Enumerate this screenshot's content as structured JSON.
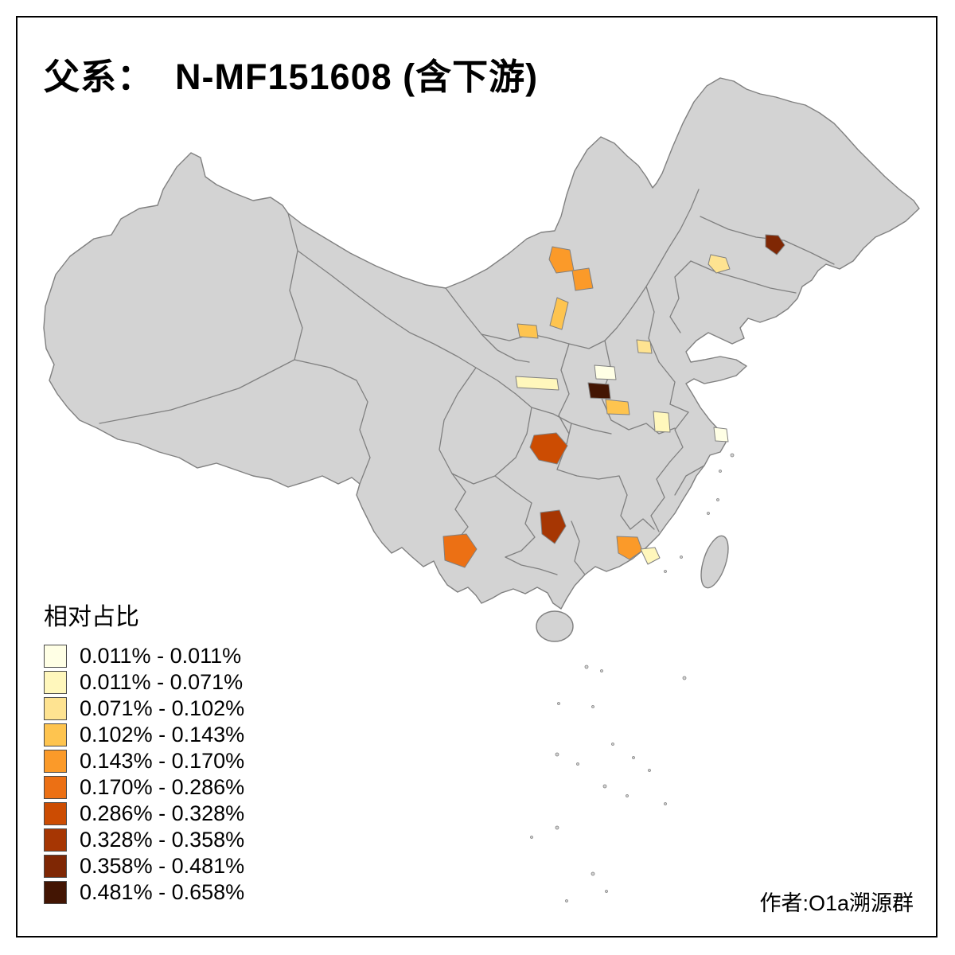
{
  "title": "父系：  N-MF151608 (含下游)",
  "legend": {
    "title": "相对占比",
    "entries": [
      {
        "label": "0.011% - 0.011%",
        "color": "#FFFFE5"
      },
      {
        "label": "0.011% - 0.071%",
        "color": "#FFF7BC"
      },
      {
        "label": "0.071% - 0.102%",
        "color": "#FEE391"
      },
      {
        "label": "0.102% - 0.143%",
        "color": "#FEC44F"
      },
      {
        "label": "0.143% - 0.170%",
        "color": "#FB9A29"
      },
      {
        "label": "0.170% - 0.286%",
        "color": "#EC7014"
      },
      {
        "label": "0.286% - 0.328%",
        "color": "#CC4C02"
      },
      {
        "label": "0.328% - 0.358%",
        "color": "#A63603"
      },
      {
        "label": "0.358% - 0.481%",
        "color": "#7F2704"
      },
      {
        "label": "0.481% - 0.658%",
        "color": "#431503"
      }
    ]
  },
  "credit": "作者:O1a溯源群",
  "map": {
    "base_fill": "#d3d3d3",
    "border_color": "#808080",
    "highlighted_regions": [
      {
        "id": "region-1",
        "bucket": 8
      },
      {
        "id": "region-2",
        "bucket": 2
      },
      {
        "id": "region-3",
        "bucket": 4
      },
      {
        "id": "region-4",
        "bucket": 4
      },
      {
        "id": "region-5",
        "bucket": 3
      },
      {
        "id": "region-6",
        "bucket": 3
      },
      {
        "id": "region-7",
        "bucket": 2
      },
      {
        "id": "region-8",
        "bucket": 1
      },
      {
        "id": "region-9",
        "bucket": 0
      },
      {
        "id": "region-10",
        "bucket": 9
      },
      {
        "id": "region-11",
        "bucket": 3
      },
      {
        "id": "region-12",
        "bucket": 1
      },
      {
        "id": "region-13",
        "bucket": 0
      },
      {
        "id": "region-14",
        "bucket": 6
      },
      {
        "id": "region-15",
        "bucket": 7
      },
      {
        "id": "region-16",
        "bucket": 5
      },
      {
        "id": "region-17",
        "bucket": 4
      },
      {
        "id": "region-18",
        "bucket": 1
      }
    ]
  }
}
